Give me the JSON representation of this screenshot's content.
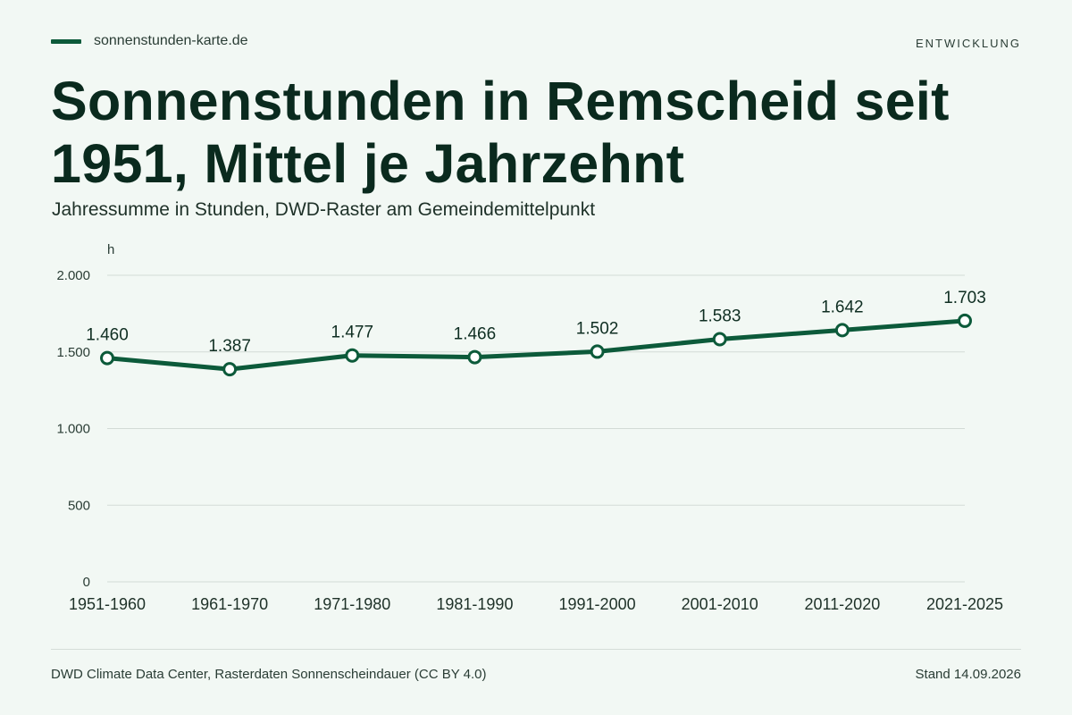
{
  "header": {
    "brand": "sonnenstunden-karte.de",
    "section": "ENTWICKLUNG"
  },
  "colors": {
    "accent": "#0c5a3a",
    "background": "#f2f8f4",
    "marker_fill": "#ffffff"
  },
  "chart_data": {
    "type": "line",
    "title": "Sonnenstunden in Remscheid seit 1951, Mittel je Jahrzehnt",
    "subtitle": "Jahressumme in Stunden, DWD-Raster am Gemeindemittelpunkt",
    "ylabel": "h",
    "xlabel": "",
    "categories": [
      "1951-1960",
      "1961-1970",
      "1971-1980",
      "1981-1990",
      "1991-2000",
      "2001-2010",
      "2011-2020",
      "2021-2025"
    ],
    "series": [
      {
        "values": [
          1460,
          1387,
          1477,
          1466,
          1502,
          1583,
          1642,
          1703
        ],
        "value_labels": [
          "1.460",
          "1.387",
          "1.477",
          "1.466",
          "1.502",
          "1.583",
          "1.642",
          "1.703"
        ]
      }
    ],
    "ylim": [
      0,
      2000
    ],
    "yticks": [
      0,
      500,
      1000,
      1500,
      2000
    ],
    "ytick_labels": [
      "0",
      "500",
      "1.000",
      "1.500",
      "2.000"
    ],
    "grid": true,
    "legend": "none"
  },
  "footer": {
    "source": "DWD Climate Data Center, Rasterdaten Sonnenscheindauer (CC BY 4.0)",
    "stand": "Stand 14.09.2026"
  }
}
